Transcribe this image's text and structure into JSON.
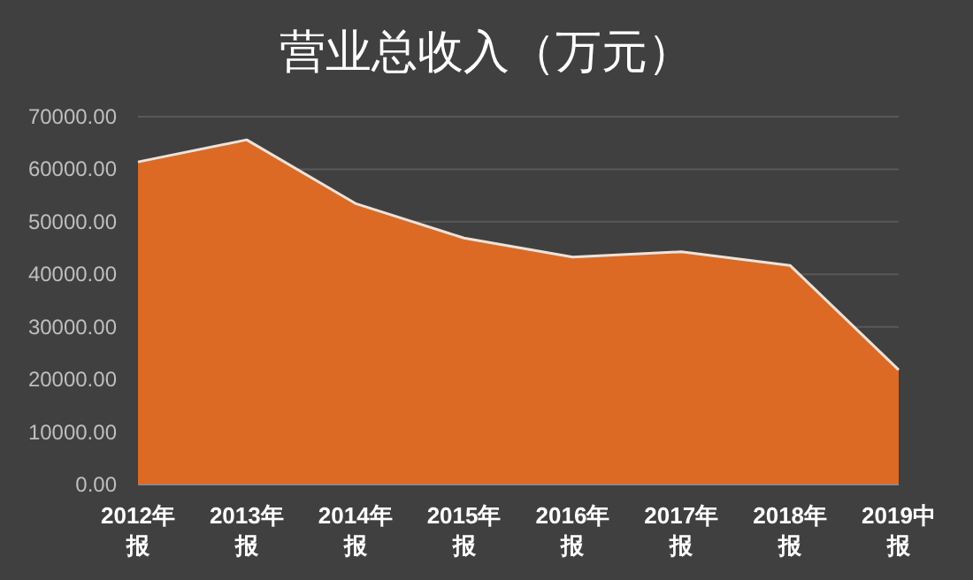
{
  "chart_data": {
    "type": "area",
    "title": "营业总收入（万元）",
    "categories": [
      "2012年报",
      "2013年报",
      "2014年报",
      "2015年报",
      "2016年报",
      "2017年报",
      "2018年报",
      "2019中报"
    ],
    "series": [
      {
        "color": "#dc6a24",
        "values": [
          61400,
          65600,
          53500,
          46900,
          43300,
          44300,
          41700,
          21800
        ]
      }
    ],
    "ylim": [
      0,
      70000
    ],
    "yticks": [
      {
        "value": 0,
        "label": "0.00"
      },
      {
        "value": 10000,
        "label": "10000.00"
      },
      {
        "value": 20000,
        "label": "20000.00"
      },
      {
        "value": 30000,
        "label": "30000.00"
      },
      {
        "value": 40000,
        "label": "40000.00"
      },
      {
        "value": 50000,
        "label": "50000.00"
      },
      {
        "value": 60000,
        "label": "60000.00"
      },
      {
        "value": 70000,
        "label": "70000.00"
      }
    ],
    "grid": "y"
  }
}
